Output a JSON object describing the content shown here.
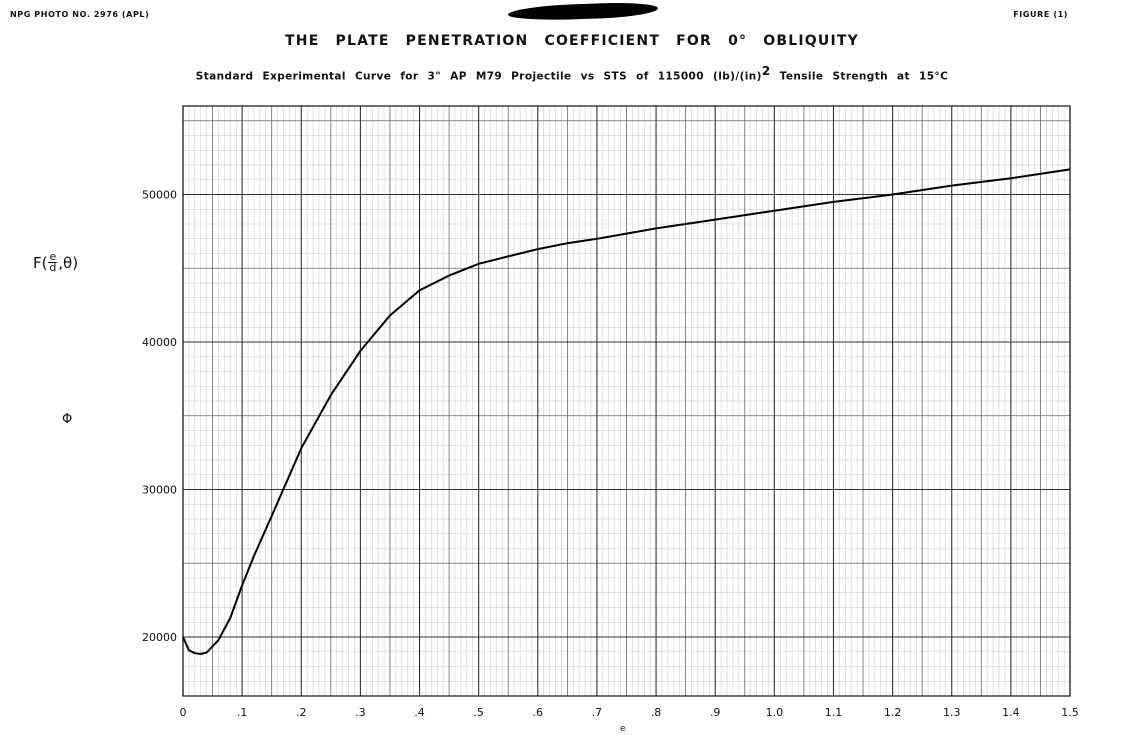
{
  "header": {
    "photo_no": "NPG PHOTO NO. 2976 (APL)",
    "figure_no": "FIGURE (1)"
  },
  "chart_data": {
    "type": "line",
    "title": "THE PLATE PENETRATION COEFFICIENT FOR 0° OBLIQUITY",
    "subtitle_pre": "Standard Experimental Curve for 3\" AP M79 Projectile vs STS of 115000 (lb)/(in)",
    "subtitle_sup": "2",
    "subtitle_post": " Tensile Strength at 15°C",
    "ylabel_fn_pre": "F(",
    "ylabel_fn_num": "e",
    "ylabel_fn_den": "d",
    "ylabel_fn_post": ",θ)",
    "ylabel_symbol": "Φ",
    "xlabel": "e",
    "xlim": [
      0,
      1.5
    ],
    "ylim": [
      16000,
      56000
    ],
    "grid": true,
    "x_ticks": [
      "0",
      ".1",
      ".2",
      ".3",
      ".4",
      ".5",
      ".6",
      ".7",
      ".8",
      ".9",
      "1.0",
      "1.1",
      "1.2",
      "1.3",
      "1.4",
      "1.5"
    ],
    "y_ticks": [
      "20000",
      "30000",
      "40000",
      "50000"
    ],
    "series": [
      {
        "x": [
          0.0,
          0.01,
          0.02,
          0.03,
          0.04,
          0.06,
          0.08,
          0.1,
          0.12,
          0.15,
          0.2,
          0.25,
          0.3,
          0.35,
          0.4,
          0.45,
          0.5,
          0.55,
          0.6,
          0.65,
          0.7,
          0.8,
          0.9,
          1.0,
          1.1,
          1.2,
          1.3,
          1.4,
          1.5
        ],
        "y": [
          20000,
          19100,
          18900,
          18850,
          18950,
          19800,
          21300,
          23500,
          25500,
          28200,
          32800,
          36400,
          39400,
          41800,
          43500,
          44500,
          45300,
          45800,
          46300,
          46700,
          47000,
          47700,
          48300,
          48900,
          49500,
          50000,
          50600,
          51100,
          51700
        ]
      }
    ]
  }
}
